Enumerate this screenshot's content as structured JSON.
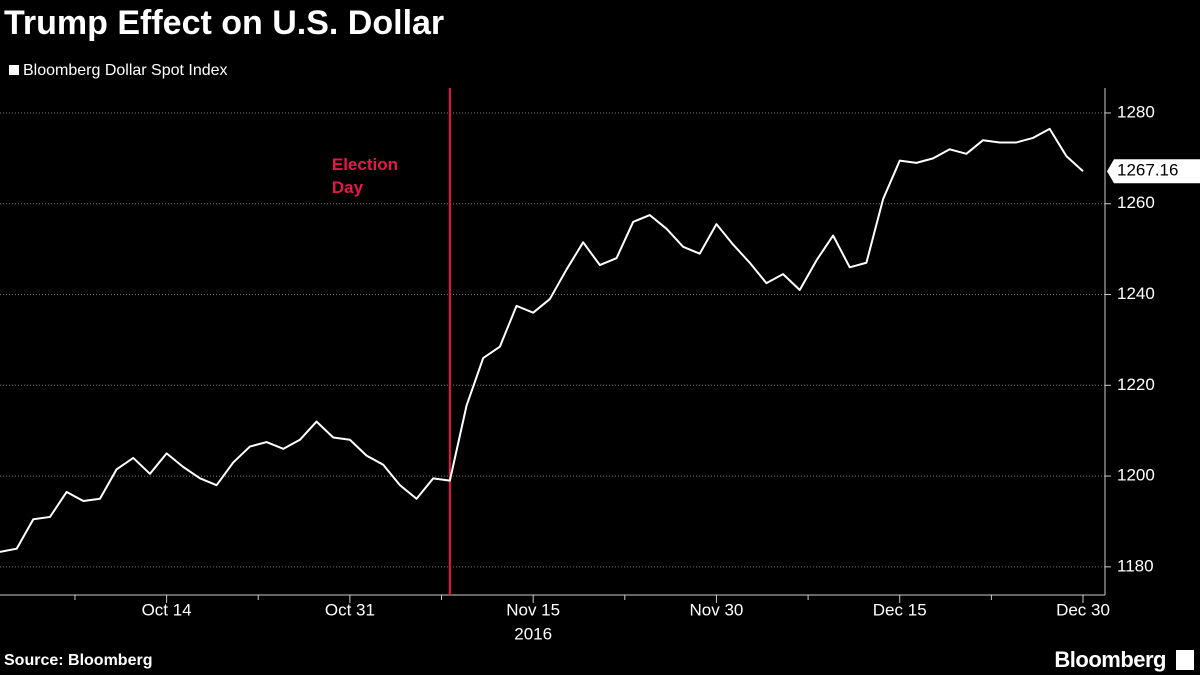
{
  "chart_data": {
    "type": "line",
    "title": "Trump Effect on U.S. Dollar",
    "source": "Source: Bloomberg",
    "brand": "Bloomberg",
    "x_sublabel": "2016",
    "categories": [
      null,
      null,
      null,
      null,
      null,
      null,
      null,
      null,
      null,
      null,
      "Oct 14",
      null,
      null,
      null,
      null,
      null,
      null,
      null,
      null,
      null,
      null,
      "Oct 31",
      null,
      null,
      null,
      null,
      null,
      null,
      null,
      null,
      null,
      null,
      "Nov 15",
      null,
      null,
      null,
      null,
      null,
      null,
      null,
      null,
      null,
      null,
      "Nov 30",
      null,
      null,
      null,
      null,
      null,
      null,
      null,
      null,
      null,
      null,
      "Dec 15",
      null,
      null,
      null,
      null,
      null,
      null,
      null,
      null,
      null,
      null,
      "Dec 30"
    ],
    "series": [
      {
        "name": "Bloomberg Dollar Spot Index",
        "color": "#ffffff",
        "values": [
          1183.3,
          1184,
          1190.5,
          1191,
          1196.5,
          1194.5,
          1195,
          1201.5,
          1204,
          1200.5,
          1205,
          1202,
          1199.5,
          1198,
          1203,
          1206.5,
          1207.5,
          1206,
          1208,
          1212,
          1208.5,
          1208,
          1204.5,
          1202.5,
          1198,
          1195,
          1199.5,
          1199,
          1215.5,
          1226,
          1228.5,
          1237.5,
          1236,
          1239,
          1245.5,
          1251.5,
          1246.5,
          1248,
          1256,
          1257.5,
          1254.5,
          1250.5,
          1249,
          1255.5,
          1251,
          1247,
          1242.5,
          1244.5,
          1241,
          1247.5,
          1253,
          1246,
          1247,
          1261,
          1269.5,
          1269,
          1270,
          1272,
          1271,
          1274,
          1273.5,
          1273.5,
          1274.5,
          1276.5,
          1270.5,
          1267.16
        ]
      }
    ],
    "annotation": {
      "text": "Election Day",
      "at": 27,
      "color": "#e8174a"
    },
    "ylim": [
      1173.8,
      1285.5
    ],
    "yticks": [
      1180,
      1200,
      1220,
      1240,
      1260,
      1280
    ],
    "grid": true
  }
}
